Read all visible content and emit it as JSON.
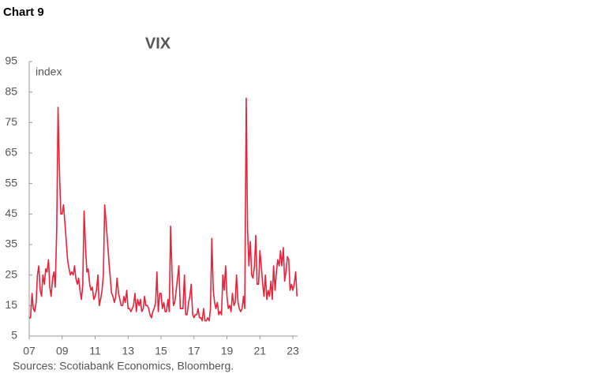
{
  "header": "Chart 9",
  "chart_data": {
    "type": "line",
    "title": "VIX",
    "y_label": "index",
    "source": "Sources: Scotiabank Economics, Bloomberg.",
    "x": [
      2007,
      2007.08,
      2007.17,
      2007.25,
      2007.33,
      2007.42,
      2007.5,
      2007.58,
      2007.67,
      2007.75,
      2007.83,
      2007.92,
      2008,
      2008.08,
      2008.17,
      2008.25,
      2008.33,
      2008.42,
      2008.5,
      2008.58,
      2008.67,
      2008.75,
      2008.83,
      2008.92,
      2009,
      2009.08,
      2009.17,
      2009.25,
      2009.33,
      2009.42,
      2009.5,
      2009.58,
      2009.67,
      2009.75,
      2009.83,
      2009.92,
      2010,
      2010.08,
      2010.17,
      2010.25,
      2010.33,
      2010.42,
      2010.5,
      2010.58,
      2010.67,
      2010.75,
      2010.83,
      2010.92,
      2011,
      2011.08,
      2011.17,
      2011.25,
      2011.33,
      2011.42,
      2011.5,
      2011.58,
      2011.67,
      2011.75,
      2011.83,
      2011.92,
      2012,
      2012.08,
      2012.17,
      2012.25,
      2012.33,
      2012.42,
      2012.5,
      2012.58,
      2012.67,
      2012.75,
      2012.83,
      2012.92,
      2013,
      2013.08,
      2013.17,
      2013.25,
      2013.33,
      2013.42,
      2013.5,
      2013.58,
      2013.67,
      2013.75,
      2013.83,
      2013.92,
      2014,
      2014.08,
      2014.17,
      2014.25,
      2014.33,
      2014.42,
      2014.5,
      2014.58,
      2014.67,
      2014.75,
      2014.83,
      2014.92,
      2015,
      2015.08,
      2015.17,
      2015.25,
      2015.33,
      2015.42,
      2015.5,
      2015.58,
      2015.67,
      2015.75,
      2015.83,
      2015.92,
      2016,
      2016.08,
      2016.17,
      2016.25,
      2016.33,
      2016.42,
      2016.5,
      2016.58,
      2016.67,
      2016.75,
      2016.83,
      2016.92,
      2017,
      2017.08,
      2017.17,
      2017.25,
      2017.33,
      2017.42,
      2017.5,
      2017.58,
      2017.67,
      2017.75,
      2017.83,
      2017.92,
      2018,
      2018.08,
      2018.17,
      2018.25,
      2018.33,
      2018.42,
      2018.5,
      2018.58,
      2018.67,
      2018.75,
      2018.83,
      2018.92,
      2019,
      2019.08,
      2019.17,
      2019.25,
      2019.33,
      2019.42,
      2019.5,
      2019.58,
      2019.67,
      2019.75,
      2019.83,
      2019.92,
      2020,
      2020.08,
      2020.17,
      2020.25,
      2020.33,
      2020.42,
      2020.5,
      2020.58,
      2020.67,
      2020.75,
      2020.83,
      2020.92,
      2021,
      2021.08,
      2021.17,
      2021.25,
      2021.33,
      2021.42,
      2021.5,
      2021.58,
      2021.67,
      2021.75,
      2021.83,
      2021.92,
      2022,
      2022.08,
      2022.17,
      2022.25,
      2022.33,
      2022.42,
      2022.5,
      2022.58,
      2022.67,
      2022.75,
      2022.83,
      2022.92,
      2023,
      2023.08,
      2023.17,
      2023.25
    ],
    "series": [
      {
        "name": "VIX",
        "color": "#e8233a",
        "values": [
          11,
          11,
          19,
          14,
          13,
          16,
          25,
          28,
          20,
          18,
          25,
          22,
          27,
          26,
          30,
          21,
          18,
          24,
          26,
          21,
          40,
          80,
          60,
          45,
          45,
          48,
          42,
          36,
          30,
          27,
          25,
          26,
          25,
          28,
          24,
          22,
          24,
          20,
          17,
          22,
          46,
          34,
          26,
          27,
          22,
          20,
          21,
          17,
          18,
          20,
          25,
          15,
          17,
          20,
          25,
          48,
          42,
          36,
          30,
          24,
          19,
          18,
          16,
          18,
          24,
          19,
          17,
          15,
          15,
          18,
          16,
          20,
          14,
          14,
          13,
          14,
          15,
          19,
          13,
          17,
          15,
          17,
          13,
          14,
          18,
          15,
          15,
          14,
          12,
          11,
          13,
          14,
          16,
          26,
          13,
          19,
          19,
          14,
          16,
          13,
          13,
          17,
          13,
          41,
          25,
          15,
          16,
          20,
          24,
          28,
          14,
          14,
          14,
          25,
          12,
          12,
          16,
          18,
          22,
          12,
          11,
          12,
          12,
          14,
          11,
          11,
          10,
          14,
          10,
          10,
          11,
          10,
          14,
          37,
          20,
          16,
          14,
          16,
          12,
          13,
          12,
          25,
          20,
          28,
          18,
          14,
          15,
          13,
          19,
          15,
          16,
          25,
          16,
          14,
          13,
          14,
          18,
          14,
          83,
          40,
          28,
          36,
          25,
          24,
          28,
          38,
          22,
          22,
          33,
          28,
          22,
          18,
          25,
          17,
          20,
          18,
          23,
          17,
          28,
          20,
          26,
          30,
          28,
          33,
          28,
          34,
          23,
          26,
          31,
          30,
          20,
          22,
          20,
          22,
          26,
          18
        ]
      }
    ],
    "xlim": [
      2007,
      2023.3
    ],
    "xticks": [
      {
        "value": 2007,
        "label": "07"
      },
      {
        "value": 2009,
        "label": "09"
      },
      {
        "value": 2011,
        "label": "11"
      },
      {
        "value": 2013,
        "label": "13"
      },
      {
        "value": 2015,
        "label": "15"
      },
      {
        "value": 2017,
        "label": "17"
      },
      {
        "value": 2019,
        "label": "19"
      },
      {
        "value": 2021,
        "label": "21"
      },
      {
        "value": 2023,
        "label": "23"
      }
    ],
    "ylim": [
      5,
      95
    ],
    "yticks": [
      5,
      15,
      25,
      35,
      45,
      55,
      65,
      75,
      85,
      95
    ],
    "grid": false
  }
}
